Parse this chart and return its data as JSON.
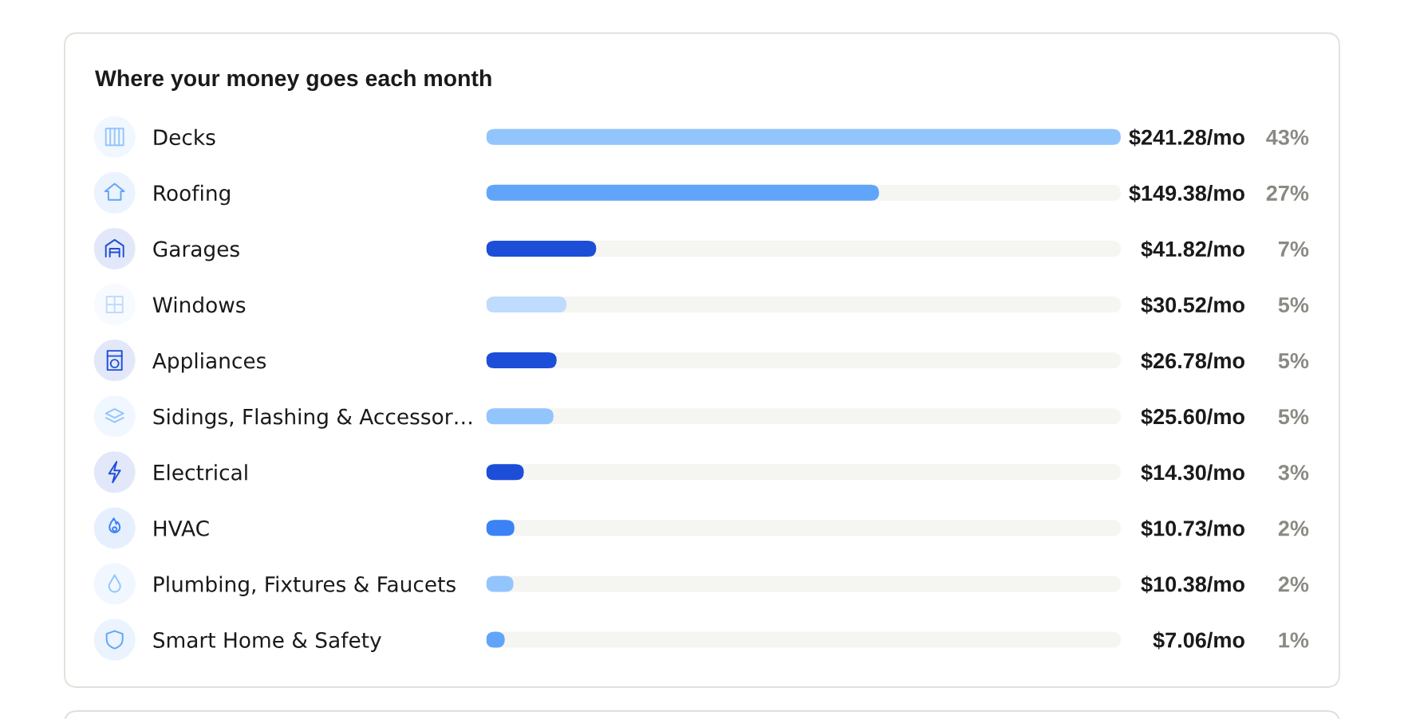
{
  "chart_data": {
    "type": "bar",
    "orientation": "horizontal",
    "title": "Where your money goes each month",
    "categories": [
      "Decks",
      "Roofing",
      "Garages",
      "Windows",
      "Appliances",
      "Sidings, Flashing & Accessor…",
      "Electrical",
      "HVAC",
      "Plumbing, Fixtures & Faucets",
      "Smart Home & Safety"
    ],
    "values": [
      241.28,
      149.38,
      41.82,
      30.52,
      26.78,
      25.6,
      14.3,
      10.73,
      10.38,
      7.06
    ],
    "colors": [
      "#93c5fd",
      "#60a5fa",
      "#1d4ed8",
      "#bfdbfe",
      "#1d4ed8",
      "#93c5fd",
      "#1d4ed8",
      "#3b82f6",
      "#93c5fd",
      "#60a5fa"
    ],
    "value_labels": [
      "$241.28/mo",
      "$149.38/mo",
      "$41.82/mo",
      "$30.52/mo",
      "$26.78/mo",
      "$25.60/mo",
      "$14.30/mo",
      "$10.73/mo",
      "$10.38/mo",
      "$7.06/mo"
    ],
    "annotations": [
      "43%",
      "27%",
      "7%",
      "5%",
      "5%",
      "5%",
      "3%",
      "2%",
      "2%",
      "1%"
    ],
    "xlim": [
      0,
      241.28
    ],
    "tick_labels": "y"
  }
}
